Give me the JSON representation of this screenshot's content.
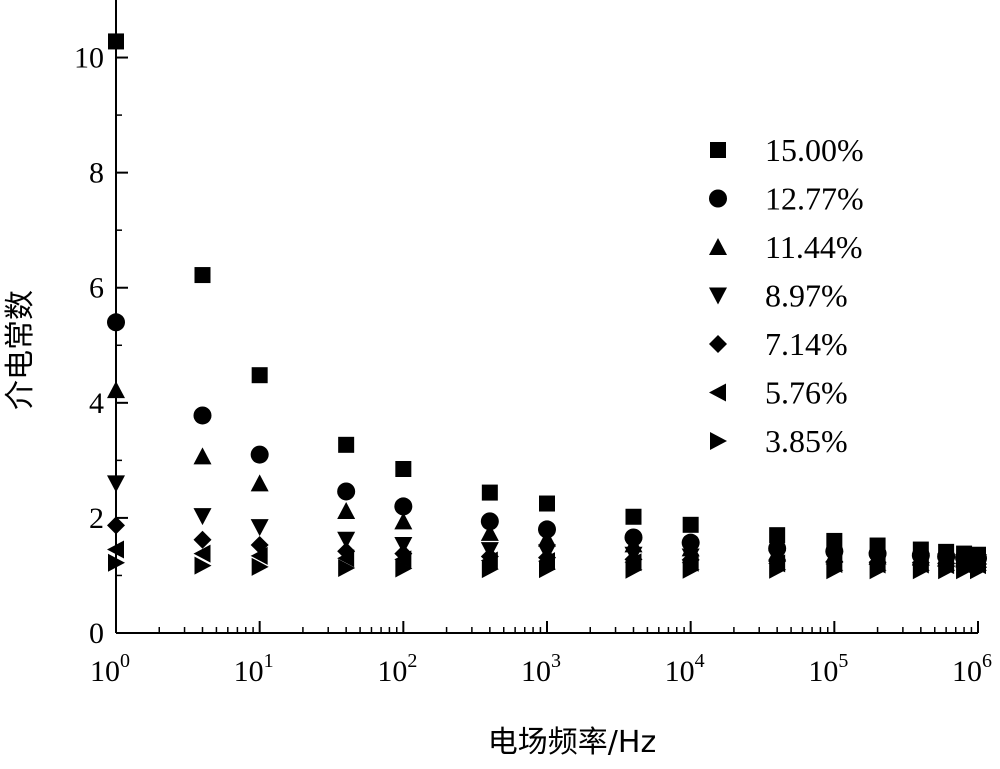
{
  "chart_data": {
    "type": "scatter",
    "xlabel": "电场频率/Hz",
    "ylabel": "介电常数",
    "x_scale": "log",
    "xlim": [
      1,
      1000000
    ],
    "ylim": [
      0,
      11
    ],
    "x_ticks": [
      {
        "base": "10",
        "exp": "0"
      },
      {
        "base": "10",
        "exp": "1"
      },
      {
        "base": "10",
        "exp": "2"
      },
      {
        "base": "10",
        "exp": "3"
      },
      {
        "base": "10",
        "exp": "4"
      },
      {
        "base": "10",
        "exp": "5"
      },
      {
        "base": "10",
        "exp": "6"
      }
    ],
    "y_ticks": [
      "0",
      "2",
      "4",
      "6",
      "8",
      "10"
    ],
    "legend_position": "top-right",
    "grid": false,
    "x": [
      1,
      4,
      10,
      40,
      100,
      400,
      1000,
      4000,
      10000,
      40000,
      100000,
      200000,
      400000,
      600000,
      800000,
      1000000
    ],
    "series": [
      {
        "name": "15.00%",
        "marker": "square",
        "values": [
          10.28,
          6.22,
          4.48,
          3.27,
          2.85,
          2.44,
          2.25,
          2.02,
          1.88,
          1.7,
          1.6,
          1.52,
          1.45,
          1.41,
          1.38,
          1.36
        ]
      },
      {
        "name": "12.77%",
        "marker": "circle",
        "values": [
          5.4,
          3.78,
          3.1,
          2.46,
          2.2,
          1.94,
          1.8,
          1.66,
          1.57,
          1.47,
          1.42,
          1.38,
          1.35,
          1.33,
          1.31,
          1.3
        ]
      },
      {
        "name": "11.44%",
        "marker": "triangle-up",
        "values": [
          4.22,
          3.07,
          2.6,
          2.12,
          1.94,
          1.74,
          1.64,
          1.54,
          1.47,
          1.4,
          1.36,
          1.33,
          1.31,
          1.29,
          1.28,
          1.27
        ]
      },
      {
        "name": "8.97%",
        "marker": "triangle-down",
        "values": [
          2.6,
          2.03,
          1.84,
          1.62,
          1.53,
          1.44,
          1.4,
          1.36,
          1.33,
          1.3,
          1.28,
          1.26,
          1.25,
          1.24,
          1.23,
          1.23
        ]
      },
      {
        "name": "7.14%",
        "marker": "diamond",
        "values": [
          1.87,
          1.62,
          1.53,
          1.42,
          1.38,
          1.33,
          1.31,
          1.28,
          1.27,
          1.25,
          1.24,
          1.23,
          1.22,
          1.21,
          1.21,
          1.2
        ]
      },
      {
        "name": "5.76%",
        "marker": "triangle-left",
        "values": [
          1.45,
          1.38,
          1.34,
          1.3,
          1.28,
          1.26,
          1.25,
          1.23,
          1.22,
          1.21,
          1.2,
          1.19,
          1.19,
          1.18,
          1.18,
          1.18
        ]
      },
      {
        "name": "3.85%",
        "marker": "triangle-right",
        "values": [
          1.22,
          1.17,
          1.15,
          1.13,
          1.12,
          1.11,
          1.11,
          1.1,
          1.1,
          1.1,
          1.09,
          1.09,
          1.09,
          1.09,
          1.09,
          1.09
        ]
      }
    ]
  }
}
